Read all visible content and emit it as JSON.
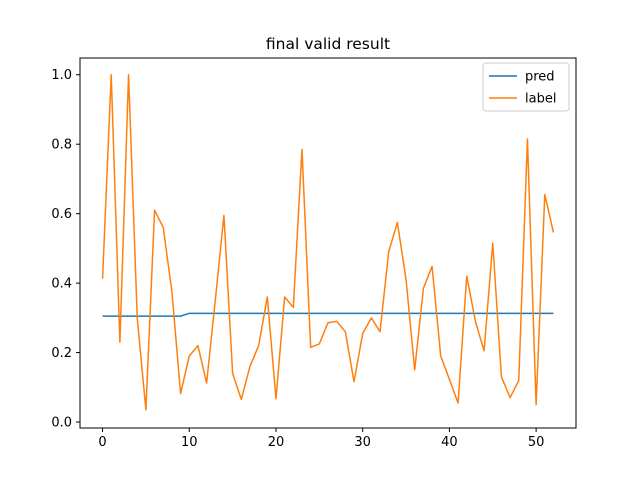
{
  "chart_data": {
    "type": "line",
    "title": "final valid result",
    "xlabel": "",
    "ylabel": "",
    "xlim": [
      -2.6,
      54.6
    ],
    "ylim": [
      -0.0172,
      1.0482
    ],
    "xticks": [
      0,
      10,
      20,
      30,
      40,
      50
    ],
    "yticks": [
      0.0,
      0.2,
      0.4,
      0.6,
      0.8,
      1.0
    ],
    "xtick_labels": [
      "0",
      "10",
      "20",
      "30",
      "40",
      "50"
    ],
    "ytick_labels": [
      "0.0",
      "0.2",
      "0.4",
      "0.6",
      "0.8",
      "1.0"
    ],
    "grid": false,
    "legend_position": "top-right",
    "x": [
      0,
      1,
      2,
      3,
      4,
      5,
      6,
      7,
      8,
      9,
      10,
      11,
      12,
      13,
      14,
      15,
      16,
      17,
      18,
      19,
      20,
      21,
      22,
      23,
      24,
      25,
      26,
      27,
      28,
      29,
      30,
      31,
      32,
      33,
      34,
      35,
      36,
      37,
      38,
      39,
      40,
      41,
      42,
      43,
      44,
      45,
      46,
      47,
      48,
      49,
      50,
      51,
      52
    ],
    "series": [
      {
        "name": "pred",
        "color": "#1f77b4",
        "values": [
          0.305,
          0.305,
          0.305,
          0.305,
          0.305,
          0.305,
          0.305,
          0.305,
          0.305,
          0.305,
          0.313,
          0.313,
          0.313,
          0.313,
          0.313,
          0.313,
          0.313,
          0.313,
          0.313,
          0.313,
          0.313,
          0.313,
          0.313,
          0.313,
          0.313,
          0.313,
          0.313,
          0.313,
          0.313,
          0.313,
          0.313,
          0.313,
          0.313,
          0.313,
          0.313,
          0.313,
          0.313,
          0.313,
          0.313,
          0.313,
          0.313,
          0.313,
          0.313,
          0.313,
          0.313,
          0.313,
          0.313,
          0.313,
          0.313,
          0.313,
          0.313,
          0.313,
          0.313
        ]
      },
      {
        "name": "label",
        "color": "#ff7f0e",
        "values": [
          0.413,
          1.0,
          0.23,
          1.0,
          0.3,
          0.035,
          0.61,
          0.56,
          0.375,
          0.082,
          0.19,
          0.22,
          0.112,
          0.35,
          0.595,
          0.14,
          0.065,
          0.16,
          0.22,
          0.36,
          0.067,
          0.36,
          0.33,
          0.785,
          0.215,
          0.225,
          0.286,
          0.29,
          0.26,
          0.116,
          0.255,
          0.3,
          0.26,
          0.49,
          0.575,
          0.41,
          0.15,
          0.385,
          0.448,
          0.19,
          0.123,
          0.055,
          0.42,
          0.29,
          0.205,
          0.515,
          0.13,
          0.07,
          0.12,
          0.815,
          0.05,
          0.655,
          0.546
        ]
      }
    ]
  }
}
